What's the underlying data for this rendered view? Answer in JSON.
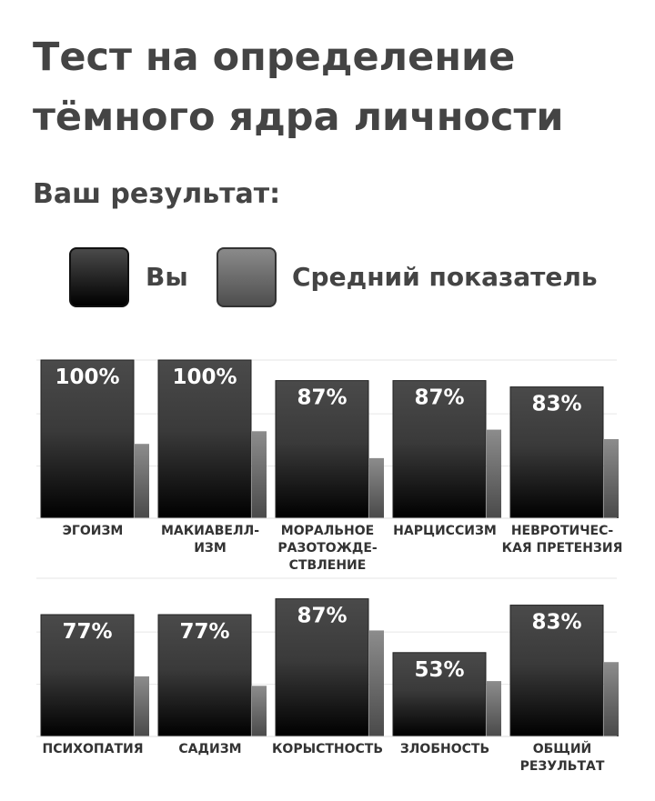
{
  "header": {
    "title": "Тест на определение тёмного ядра личности",
    "subtitle": "Ваш результат:"
  },
  "legend": {
    "you_label": "Вы",
    "avg_label": "Средний показатель"
  },
  "colors": {
    "you_top": "#4a4a4a",
    "you_bottom": "#000000",
    "avg_top": "#8c8c8c",
    "avg_bottom": "#4a4a4a",
    "text": "#444444"
  },
  "chart_data": [
    {
      "type": "bar",
      "categories": [
        "ЭГОИЗМ",
        "МАКИАВЕЛЛ-ИЗМ",
        "МОРАЛЬНОЕ РАЗОТОЖДЕ-СТВЛЕНИЕ",
        "НАРЦИССИЗМ",
        "НЕВРОТИЧЕС-КАЯ ПРЕТЕНЗИЯ"
      ],
      "category_lines": [
        [
          "ЭГОИЗМ"
        ],
        [
          "МАКИАВЕЛЛ-",
          "ИЗМ"
        ],
        [
          "МОРАЛЬНОЕ",
          "РАЗОТОЖДЕ-",
          "СТВЛЕНИЕ"
        ],
        [
          "НАРЦИССИЗМ"
        ],
        [
          "НЕВРОТИЧЕС-",
          "КАЯ ПРЕТЕНЗИЯ"
        ]
      ],
      "series": [
        {
          "name": "Вы",
          "values": [
            100,
            100,
            87,
            87,
            83
          ],
          "labels": [
            "100%",
            "100%",
            "87%",
            "87%",
            "83%"
          ]
        },
        {
          "name": "Средний показатель",
          "values": [
            47,
            55,
            38,
            56,
            50
          ]
        }
      ],
      "ylim": [
        0,
        100
      ],
      "grid": true
    },
    {
      "type": "bar",
      "categories": [
        "ПСИХОПАТИЯ",
        "САДИЗМ",
        "КОРЫСТНОСТЬ",
        "ЗЛОБНОСТЬ",
        "ОБЩИЙ РЕЗУЛЬТАТ"
      ],
      "category_lines": [
        [
          "ПСИХОПАТИЯ"
        ],
        [
          "САДИЗМ"
        ],
        [
          "КОРЫСТНОСТЬ"
        ],
        [
          "ЗЛОБНОСТЬ"
        ],
        [
          "ОБЩИЙ",
          "РЕЗУЛЬТАТ"
        ]
      ],
      "series": [
        {
          "name": "Вы",
          "values": [
            77,
            77,
            87,
            53,
            83
          ],
          "labels": [
            "77%",
            "77%",
            "87%",
            "53%",
            "83%"
          ]
        },
        {
          "name": "Средний показатель",
          "values": [
            38,
            32,
            67,
            35,
            47
          ]
        }
      ],
      "ylim": [
        0,
        100
      ],
      "grid": true
    }
  ]
}
